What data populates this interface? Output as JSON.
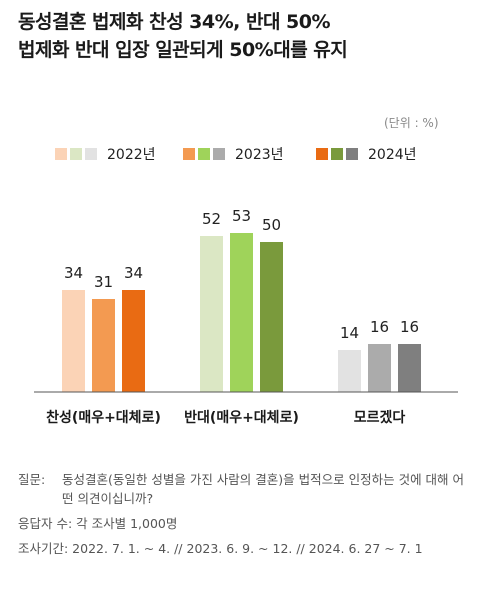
{
  "title": {
    "line1": "동성결혼 법제화 찬성 34%, 반대 50%",
    "line2": "법제화 반대 입장 일관되게 50%대를 유지"
  },
  "unit_label": "(단위 : %)",
  "colors": {
    "2022년": [
      "#fbd3b6",
      "#dbe7c4",
      "#e2e2e2"
    ],
    "2023년": [
      "#f39a51",
      "#9fd35a",
      "#ababab"
    ],
    "2024년": [
      "#e96b13",
      "#7a9a3c",
      "#7f7f7f"
    ]
  },
  "chart_data": {
    "type": "bar",
    "categories": [
      "찬성(매우+대체로)",
      "반대(매우+대체로)",
      "모르겠다"
    ],
    "series": [
      {
        "name": "2022년",
        "values": [
          34,
          52,
          14
        ]
      },
      {
        "name": "2023년",
        "values": [
          31,
          53,
          16
        ]
      },
      {
        "name": "2024년",
        "values": [
          34,
          50,
          16
        ]
      }
    ],
    "ylabel": "",
    "ylim": [
      0,
      60
    ],
    "grid": false,
    "legend_position": "top"
  },
  "notes": {
    "question_label": "질문:",
    "question_text": "동성결혼(동일한 성별을 가진 사람의 결혼)을 법적으로 인정하는 것에 대해 어떤 의견이십니까?",
    "respondents": "응답자 수: 각 조사별 1,000명",
    "period": "조사기간: 2022. 7. 1. ~ 4.  //  2023. 6. 9. ~ 12. // 2024. 6. 27 ~ 7. 1"
  }
}
